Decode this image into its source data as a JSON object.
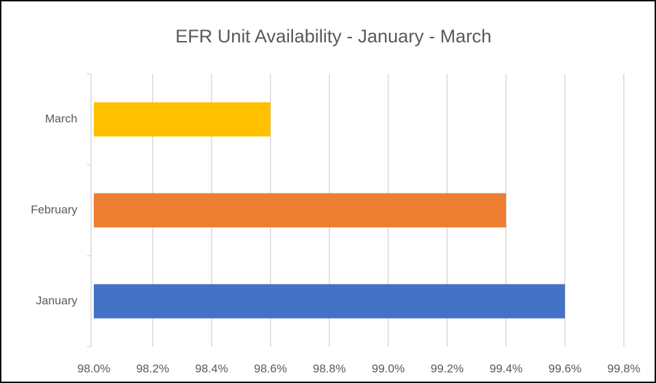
{
  "chart_data": {
    "type": "bar",
    "orientation": "horizontal",
    "title": "EFR Unit Availability - January - March",
    "categories": [
      "January",
      "February",
      "March"
    ],
    "values": [
      99.6,
      99.4,
      98.6
    ],
    "colors": [
      "#4472c4",
      "#ed7d31",
      "#ffc000"
    ],
    "xlim": [
      98,
      99.8
    ],
    "xticks": [
      {
        "value": 98,
        "label": "98.0%"
      },
      {
        "value": 98.2,
        "label": "98.2%"
      },
      {
        "value": 98.4,
        "label": "98.4%"
      },
      {
        "value": 98.6,
        "label": "98.6%"
      },
      {
        "value": 98.8,
        "label": "98.8%"
      },
      {
        "value": 99,
        "label": "99.0%"
      },
      {
        "value": 99.2,
        "label": "99.2%"
      },
      {
        "value": 99.4,
        "label": "99.4%"
      },
      {
        "value": 99.6,
        "label": "99.6%"
      },
      {
        "value": 99.8,
        "label": "99.8%"
      }
    ],
    "grid": true
  }
}
